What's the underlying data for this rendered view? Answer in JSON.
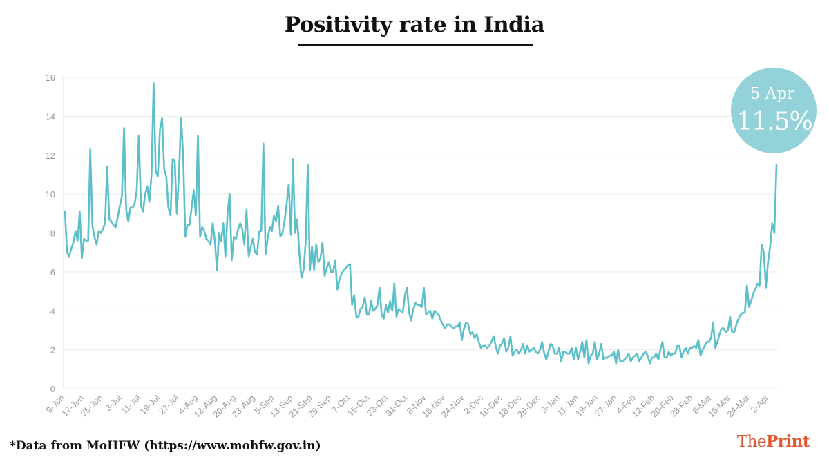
{
  "title": "Positivity rate in India",
  "footnote": "*Data from MoHFW (https://www.mohfw.gov.in)",
  "brand": {
    "prefix": "The",
    "name": "Print"
  },
  "colors": {
    "line": "#5cbfc9",
    "callout": "#93d2d8",
    "grid": "#ececec",
    "brand": "#e4572e"
  },
  "callout": {
    "date": "5 Apr",
    "value": "11.5%"
  },
  "chart_data": {
    "type": "line",
    "title": "Positivity rate in India",
    "xlabel": "",
    "ylabel": "",
    "ylim": [
      0,
      16
    ],
    "yticks": [
      0,
      2,
      4,
      6,
      8,
      10,
      12,
      14,
      16
    ],
    "grid": true,
    "x_start": "9-Jun",
    "x_end": "5-Apr",
    "x_ticks": [
      "9-Jun",
      "17-Jun",
      "25-Jun",
      "3-Jul",
      "11-Jul",
      "19-Jul",
      "27-Jul",
      "4-Aug",
      "12-Aug",
      "20-Aug",
      "28-Aug",
      "5-Sep",
      "13-Sep",
      "21-Sep",
      "29-Sep",
      "7-Oct",
      "15-Oct",
      "23-Oct",
      "31-Oct",
      "8-Nov",
      "16-Nov",
      "24-Nov",
      "2-Dec",
      "10-Dec",
      "18-Dec",
      "26-Dec",
      "3-Jan",
      "11-Jan",
      "19-Jan",
      "27-Jan",
      "4-Feb",
      "12-Feb",
      "20-Feb",
      "28-Feb",
      "8-Mar",
      "16-Mar",
      "24-Mar",
      "2-Apr"
    ],
    "series": [
      {
        "values": [
          9.1,
          7.0,
          6.8,
          7.2,
          7.5,
          8.1,
          7.6,
          9.1,
          6.7,
          7.7,
          7.6,
          7.6,
          12.3,
          8.4,
          7.8,
          7.4,
          8.1,
          8.0,
          8.2,
          8.5,
          11.4,
          8.7,
          8.6,
          8.4,
          8.3,
          8.8,
          9.4,
          9.9,
          13.4,
          9.2,
          8.6,
          9.3,
          9.3,
          9.5,
          10.2,
          13.0,
          9.4,
          9.1,
          10.0,
          10.4,
          9.6,
          11.0,
          15.7,
          11.2,
          10.9,
          13.3,
          13.9,
          11.3,
          10.9,
          9.3,
          8.9,
          11.8,
          11.7,
          9.0,
          11.0,
          13.9,
          12.0,
          7.8,
          8.4,
          8.4,
          9.3,
          10.2,
          8.9,
          13.0,
          7.8,
          8.3,
          8.1,
          7.7,
          7.6,
          7.4,
          8.5,
          7.6,
          6.1,
          8.0,
          7.6,
          8.5,
          6.8,
          9.0,
          10.0,
          6.6,
          7.8,
          7.7,
          8.2,
          8.5,
          8.2,
          7.4,
          9.2,
          6.8,
          7.3,
          7.7,
          7.0,
          6.9,
          8.1,
          8.1,
          12.6,
          6.9,
          7.7,
          8.3,
          8.1,
          8.9,
          8.6,
          9.4,
          7.8,
          8.0,
          8.6,
          9.5,
          10.5,
          7.9,
          11.8,
          8.0,
          8.7,
          7.0,
          5.7,
          6.1,
          7.5,
          11.5,
          6.1,
          7.3,
          6.1,
          7.4,
          6.5,
          6.7,
          7.5,
          5.8,
          6.2,
          6.5,
          6.0,
          6.0,
          6.6,
          5.1,
          5.6,
          5.9,
          6.1,
          6.2,
          6.3,
          6.4,
          4.3,
          4.8,
          3.7,
          3.7,
          4.1,
          4.2,
          4.7,
          3.8,
          3.8,
          4.5,
          4.0,
          4.1,
          4.3,
          5.2,
          3.8,
          3.6,
          4.3,
          3.9,
          4.5,
          4.0,
          5.4,
          3.7,
          4.1,
          4.0,
          3.9,
          4.8,
          5.2,
          3.9,
          3.5,
          4.1,
          4.4,
          4.3,
          4.3,
          4.2,
          5.2,
          3.8,
          3.9,
          4.0,
          3.6,
          4.0,
          3.9,
          3.8,
          3.5,
          3.3,
          3.1,
          3.3,
          3.3,
          3.2,
          3.1,
          3.2,
          3.2,
          3.4,
          2.5,
          3.1,
          3.4,
          3.3,
          2.8,
          2.9,
          2.6,
          2.8,
          2.4,
          2.1,
          2.2,
          2.2,
          2.1,
          2.2,
          2.4,
          2.7,
          2.2,
          1.8,
          2.2,
          2.3,
          2.6,
          1.9,
          2.1,
          2.7,
          1.7,
          1.9,
          2.0,
          1.8,
          2.0,
          2.3,
          1.8,
          2.2,
          1.9,
          2.0,
          2.1,
          1.9,
          1.8,
          2.0,
          2.4,
          1.8,
          1.5,
          1.9,
          2.3,
          2.2,
          1.8,
          1.8,
          2.1,
          1.4,
          1.9,
          1.9,
          1.8,
          1.8,
          2.1,
          1.5,
          2.1,
          1.5,
          1.9,
          2.4,
          1.6,
          2.5,
          1.3,
          1.7,
          1.8,
          2.4,
          1.5,
          1.8,
          2.3,
          1.5,
          1.6,
          1.6,
          1.7,
          1.7,
          1.9,
          1.3,
          2.0,
          1.4,
          1.4,
          1.5,
          1.6,
          1.8,
          1.4,
          1.6,
          1.7,
          1.8,
          1.4,
          1.6,
          1.8,
          1.9,
          1.7,
          1.3,
          1.6,
          1.6,
          1.8,
          1.5,
          2.0,
          2.4,
          1.6,
          1.6,
          1.9,
          1.7,
          1.8,
          1.8,
          2.2,
          2.2,
          1.6,
          1.9,
          2.1,
          1.8,
          2.1,
          2.1,
          2.2,
          2.1,
          2.5,
          1.7,
          2.0,
          2.2,
          2.4,
          2.4,
          2.6,
          3.4,
          2.1,
          2.4,
          2.8,
          3.1,
          3.1,
          2.9,
          3.0,
          3.7,
          2.9,
          2.9,
          3.3,
          3.6,
          3.8,
          3.9,
          3.9,
          5.3,
          4.2,
          4.5,
          4.9,
          5.1,
          5.4,
          5.3,
          7.4,
          7.0,
          5.2,
          6.5,
          7.3,
          8.5,
          8.0,
          11.5
        ]
      }
    ]
  }
}
